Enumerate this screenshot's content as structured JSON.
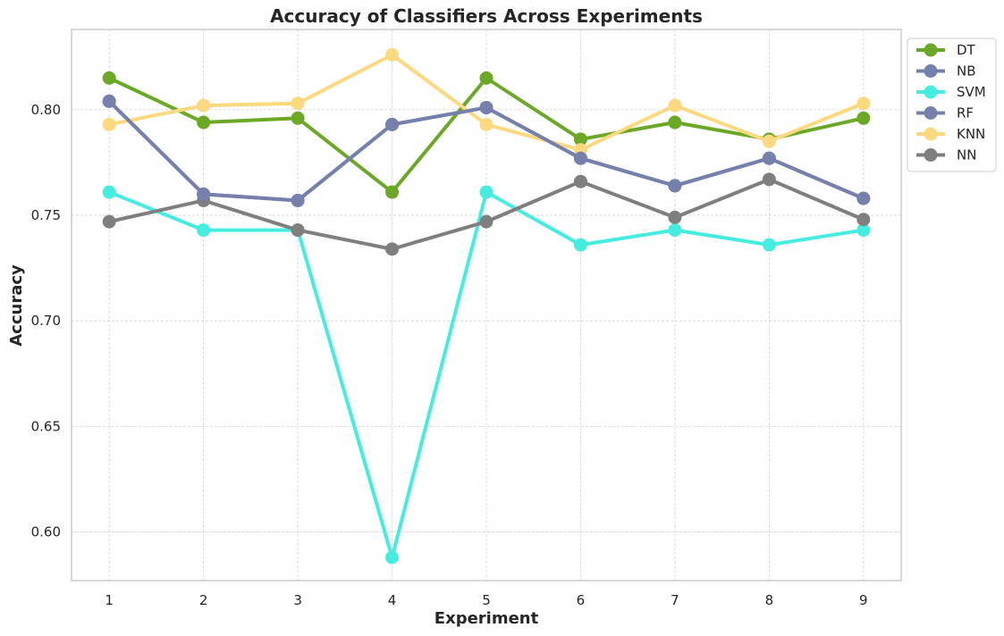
{
  "chart_data": {
    "type": "line",
    "title": "Accuracy of Classifiers Across Experiments",
    "xlabel": "Experiment",
    "ylabel": "Accuracy",
    "x": [
      1,
      2,
      3,
      4,
      5,
      6,
      7,
      8,
      9
    ],
    "x_tick_labels": [
      "1",
      "2",
      "3",
      "4",
      "5",
      "6",
      "7",
      "8",
      "9"
    ],
    "y_ticks": [
      0.6,
      0.65,
      0.7,
      0.75,
      0.8
    ],
    "y_tick_labels": [
      "0.60",
      "0.65",
      "0.70",
      "0.75",
      "0.80"
    ],
    "xlim": [
      0.6,
      9.4
    ],
    "ylim": [
      0.577,
      0.838
    ],
    "grid": true,
    "legend_position": "outside top-right",
    "series": [
      {
        "name": "DT",
        "color": "#6aa825",
        "values": [
          0.815,
          0.794,
          0.796,
          0.761,
          0.815,
          0.786,
          0.794,
          0.786,
          0.796
        ]
      },
      {
        "name": "NB",
        "color": "#7580ad",
        "values": [
          0.804,
          0.76,
          0.757,
          0.793,
          0.801,
          0.777,
          0.764,
          0.777,
          0.758
        ]
      },
      {
        "name": "SVM",
        "color": "#44ede0",
        "values": [
          0.761,
          0.743,
          0.743,
          0.588,
          0.761,
          0.736,
          0.743,
          0.736,
          0.743
        ]
      },
      {
        "name": "RF",
        "color": "#7580ad",
        "values": [
          0.804,
          0.76,
          0.757,
          0.793,
          0.801,
          0.777,
          0.764,
          0.777,
          0.758
        ]
      },
      {
        "name": "KNN",
        "color": "#fcd97f",
        "values": [
          0.793,
          0.802,
          0.803,
          0.826,
          0.793,
          0.781,
          0.802,
          0.785,
          0.803
        ]
      },
      {
        "name": "NN",
        "color": "#7f7f7f",
        "values": [
          0.747,
          0.757,
          0.743,
          0.734,
          0.747,
          0.766,
          0.749,
          0.767,
          0.748
        ]
      }
    ],
    "draw_order": [
      "DT",
      "NB",
      "SVM",
      "KNN",
      "NN",
      "RF"
    ],
    "grid_color": "#cccccc",
    "frame_color": "#cccccc"
  }
}
